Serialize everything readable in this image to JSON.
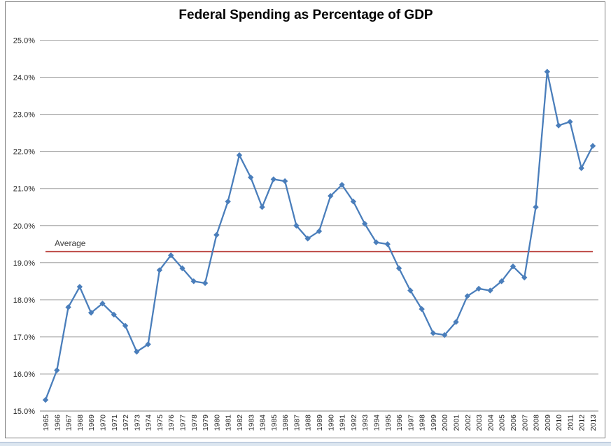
{
  "chart_data": {
    "type": "line",
    "title": "Federal Spending as Percentage of GDP",
    "xlabel": "",
    "ylabel": "",
    "categories": [
      "1965",
      "1966",
      "1967",
      "1968",
      "1969",
      "1970",
      "1971",
      "1972",
      "1973",
      "1974",
      "1975",
      "1976",
      "1977",
      "1978",
      "1979",
      "1980",
      "1981",
      "1982",
      "1983",
      "1984",
      "1985",
      "1986",
      "1987",
      "1988",
      "1989",
      "1990",
      "1991",
      "1992",
      "1993",
      "1994",
      "1995",
      "1996",
      "1997",
      "1998",
      "1999",
      "2000",
      "2001",
      "2002",
      "2003",
      "2004",
      "2005",
      "2006",
      "2007",
      "2008",
      "2009",
      "2010",
      "2011",
      "2012",
      "2013"
    ],
    "series": [
      {
        "name": "Federal spending as percentage of GDP",
        "color": "#4a7ebb",
        "marker": "diamond",
        "values": [
          15.3,
          16.1,
          17.8,
          18.35,
          17.65,
          17.9,
          17.6,
          17.3,
          16.6,
          16.8,
          18.8,
          19.2,
          18.85,
          18.5,
          18.45,
          19.75,
          20.65,
          21.9,
          21.3,
          20.5,
          21.25,
          21.2,
          20.0,
          19.65,
          19.85,
          20.8,
          21.1,
          20.65,
          20.05,
          19.55,
          19.5,
          18.85,
          18.25,
          17.75,
          17.1,
          17.05,
          17.4,
          18.1,
          18.3,
          18.25,
          18.5,
          18.9,
          18.6,
          20.5,
          24.15,
          22.7,
          22.8,
          21.55,
          22.15
        ]
      }
    ],
    "average_line": {
      "label": "Average",
      "value": 19.3,
      "color": "#be4b48"
    },
    "ylim": [
      15.0,
      25.0
    ],
    "ytick_values": [
      15,
      16,
      17,
      18,
      19,
      20,
      21,
      22,
      23,
      24,
      25
    ],
    "ytick_labels": [
      "15.0%",
      "16.0%",
      "17.0%",
      "18.0%",
      "19.0%",
      "20.0%",
      "21.0%",
      "22.0%",
      "23.0%",
      "24.0%",
      "25.0%"
    ],
    "grid": true,
    "legend_position": "none",
    "colors": {
      "gridline": "#a0a0a0",
      "axis_line": "#808080",
      "tick_text": "#262626",
      "average_label_text": "#3f3f3f",
      "frame_border": "#7f7f7f",
      "bottom_strip": "#dce6f0",
      "bottom_strip_edge": "#a6b8d0"
    }
  }
}
